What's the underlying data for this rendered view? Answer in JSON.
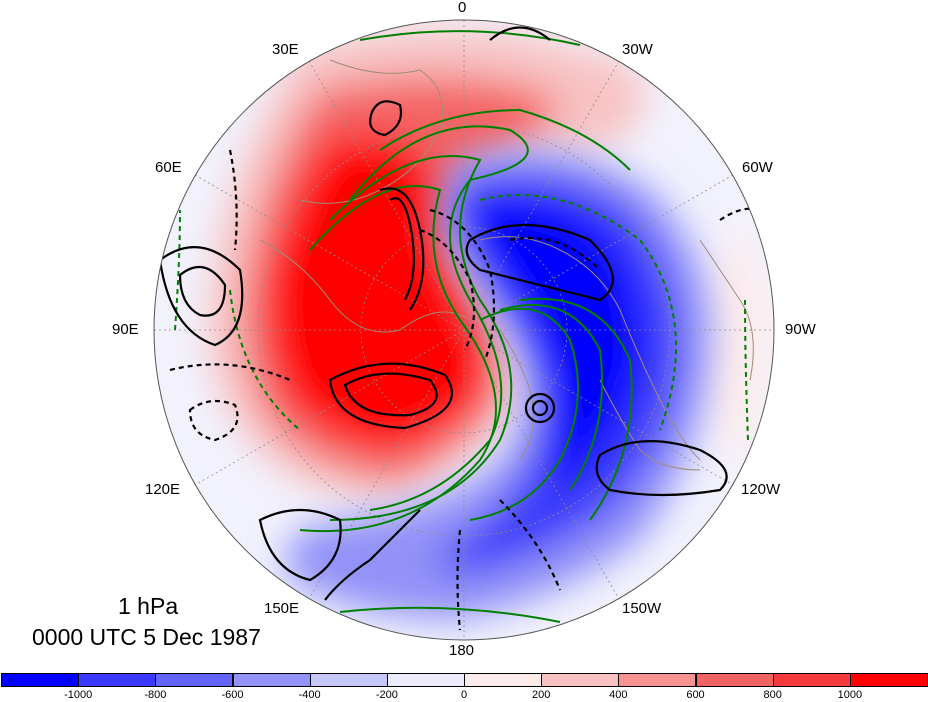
{
  "caption": {
    "level": "1 hPa",
    "time": "0000 UTC 5 Dec 1987"
  },
  "longitude_labels": [
    {
      "name": "lon-0",
      "text": "0"
    },
    {
      "name": "lon-30w",
      "text": "30W"
    },
    {
      "name": "lon-60w",
      "text": "60W"
    },
    {
      "name": "lon-90w",
      "text": "90W"
    },
    {
      "name": "lon-120w",
      "text": "120W"
    },
    {
      "name": "lon-150w",
      "text": "150W"
    },
    {
      "name": "lon-180",
      "text": "180"
    },
    {
      "name": "lon-150e",
      "text": "150E"
    },
    {
      "name": "lon-120e",
      "text": "120E"
    },
    {
      "name": "lon-90e",
      "text": "90E"
    },
    {
      "name": "lon-60e",
      "text": "60E"
    },
    {
      "name": "lon-30e",
      "text": "30E"
    }
  ],
  "colorbar": {
    "colors": [
      "#0000ff",
      "#3a3afc",
      "#6464fa",
      "#9292f8",
      "#c6c6fb",
      "#ececfd",
      "#fdecec",
      "#f8c2c2",
      "#f69494",
      "#f46464",
      "#f43a3a",
      "#ff0000"
    ],
    "tick_labels": [
      "-1000",
      "-800",
      "-600",
      "-400",
      "-200",
      "0",
      "200",
      "400",
      "600",
      "800",
      "1000"
    ]
  },
  "map_style": {
    "projection": "north-polar-stereographic",
    "positive_fill": "red",
    "negative_fill": "blue",
    "contour_positive_color": "#000000",
    "contour_negative_style": "dashed",
    "secondary_contour_color": "#008000",
    "coastline_color": "#a08c78",
    "gridline_color": "#8c8c8c"
  }
}
